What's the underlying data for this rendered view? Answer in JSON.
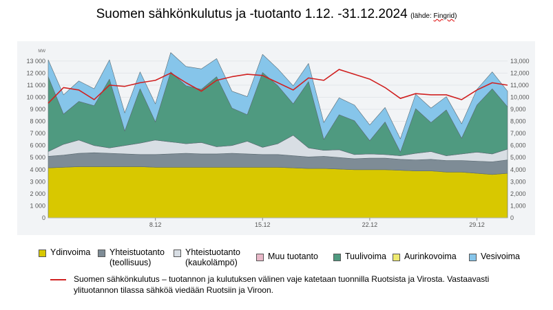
{
  "title": "Suomen sähkönkulutus ja -tuotanto 1.12. -31.12.2024",
  "source_prefix": "(lähde: ",
  "source_name": "Fingrid",
  "source_suffix": ")",
  "colors": {
    "nuclear": "#d8c800",
    "chp_industry": "#7e8c96",
    "chp_district": "#d8dee4",
    "wind": "#4f9a80",
    "hydro": "#86c5ea",
    "consumption": "#d02020",
    "plot_bg": "#f2f4f6",
    "grid": "#e3e6ea"
  },
  "legend": [
    {
      "key": "nuclear",
      "label": "Ydinvoima",
      "color": "#d8c800"
    },
    {
      "key": "chp_industry",
      "label": "Yhteistuotanto\n(teollisuus)",
      "color": "#7e8c96"
    },
    {
      "key": "chp_district",
      "label": "Yhteistuotanto\n(kaukolämpö)",
      "color": "#d8dee4"
    },
    {
      "key": "other",
      "label": "Muu tuotanto",
      "color": "#e8b8c8"
    },
    {
      "key": "wind",
      "label": "Tuulivoima",
      "color": "#4f9a80"
    },
    {
      "key": "solar",
      "label": "Aurinkovoima",
      "color": "#eeea70"
    },
    {
      "key": "hydro",
      "label": "Vesivoima",
      "color": "#86c5ea"
    }
  ],
  "line_legend_text": "Suomen sähkönkulutus – tuotannon ja kulutuksen välinen vaje katetaan tuonnilla Ruotsista ja Virosta. Vastaavasti ylituotannon tilassa sähköä viedään Ruotsiin ja Viroon.",
  "chart_data": {
    "type": "area",
    "stacked": true,
    "unit_label": "MW",
    "x_start_day": 1,
    "x_end_day": 31,
    "x": [
      1,
      2,
      3,
      4,
      5,
      6,
      7,
      8,
      9,
      10,
      11,
      12,
      13,
      14,
      15,
      16,
      17,
      18,
      19,
      20,
      21,
      22,
      23,
      24,
      25,
      26,
      27,
      28,
      29,
      30,
      31
    ],
    "x_ticks": [
      {
        "day": 8,
        "label": "8.12"
      },
      {
        "day": 15,
        "label": "15.12"
      },
      {
        "day": 22,
        "label": "22.12"
      },
      {
        "day": 29,
        "label": "29.12"
      }
    ],
    "ylim": [
      0,
      13500
    ],
    "y_ticks_left": [
      "0",
      "1 000",
      "2 000",
      "3 000",
      "4 000",
      "5 000",
      "6 000",
      "7 000",
      "8 000",
      "9 000",
      "10 000",
      "11 000",
      "12 000",
      "13 000"
    ],
    "y_ticks_right": [
      "0",
      "1,000",
      "2,000",
      "3,000",
      "4,000",
      "5,000",
      "6,000",
      "7,000",
      "8,000",
      "9,000",
      "10,000",
      "11,000",
      "12,000",
      "13,000"
    ],
    "y_tick_values": [
      0,
      1000,
      2000,
      3000,
      4000,
      5000,
      6000,
      7000,
      8000,
      9000,
      10000,
      11000,
      12000,
      13000
    ],
    "series": [
      {
        "key": "nuclear",
        "name": "Ydinvoima",
        "values": [
          4150,
          4200,
          4250,
          4250,
          4250,
          4250,
          4250,
          4200,
          4200,
          4200,
          4200,
          4200,
          4200,
          4200,
          4200,
          4200,
          4150,
          4100,
          4100,
          4050,
          4000,
          4000,
          4000,
          3950,
          3900,
          3900,
          3800,
          3800,
          3700,
          3600,
          3700
        ]
      },
      {
        "key": "chp_industry",
        "name": "Yhteistuotanto (teollisuus)",
        "values": [
          950,
          1000,
          1100,
          1150,
          1100,
          1050,
          1000,
          1050,
          1100,
          1150,
          1100,
          1100,
          1150,
          1100,
          1050,
          1050,
          1000,
          950,
          1000,
          950,
          900,
          950,
          950,
          900,
          900,
          950,
          950,
          950,
          1000,
          1050,
          1100
        ]
      },
      {
        "key": "chp_district",
        "name": "Yhteistuotanto (kaukolämpö)",
        "values": [
          400,
          900,
          1100,
          600,
          450,
          700,
          950,
          1200,
          1000,
          800,
          950,
          600,
          650,
          1050,
          600,
          900,
          1700,
          750,
          500,
          650,
          350,
          350,
          300,
          300,
          550,
          650,
          400,
          550,
          750,
          650,
          900
        ]
      },
      {
        "key": "wind",
        "name": "Tuulivoima",
        "values": [
          6200,
          2500,
          3200,
          3300,
          5700,
          1200,
          4500,
          1500,
          5800,
          4800,
          4400,
          5800,
          3100,
          2200,
          6200,
          4800,
          2600,
          5500,
          900,
          2900,
          2800,
          1100,
          2700,
          300,
          3700,
          2400,
          3800,
          1300,
          3900,
          5400,
          3500
        ]
      },
      {
        "key": "hydro",
        "name": "Vesivoima",
        "values": [
          1400,
          1600,
          1700,
          1400,
          1600,
          1500,
          1400,
          1500,
          1600,
          1600,
          1700,
          1500,
          1400,
          1500,
          1500,
          1400,
          1500,
          1500,
          1400,
          1400,
          1300,
          1300,
          1200,
          1100,
          1200,
          1200,
          1100,
          1200,
          1300,
          1400,
          1300
        ]
      }
    ],
    "line": {
      "key": "consumption",
      "name": "Suomen sähkönkulutus",
      "values": [
        9500,
        10800,
        10600,
        9800,
        11000,
        10900,
        11200,
        11400,
        12000,
        11200,
        10500,
        11400,
        11700,
        11900,
        11800,
        11200,
        10600,
        11600,
        11400,
        12300,
        11900,
        11500,
        10800,
        9900,
        10300,
        10200,
        10200,
        9800,
        10600,
        11200,
        11000
      ]
    }
  }
}
